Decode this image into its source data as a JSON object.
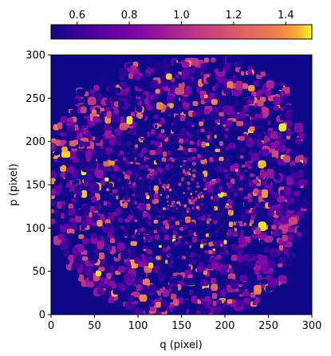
{
  "chart_data": {
    "type": "heatmap",
    "title": "",
    "xlabel": "q (pixel)",
    "ylabel": "p (pixel)",
    "xlim": [
      0,
      300
    ],
    "ylim": [
      0,
      300
    ],
    "x_ticks": [
      0,
      50,
      100,
      150,
      200,
      250,
      300
    ],
    "y_ticks": [
      0,
      50,
      100,
      150,
      200,
      250,
      300
    ],
    "x_tick_labels": [
      "0",
      "50",
      "100",
      "150",
      "200",
      "250",
      "300"
    ],
    "y_tick_labels": [
      "0",
      "50",
      "100",
      "150",
      "200",
      "250",
      "300"
    ],
    "colormap": "plasma",
    "colorbar": {
      "orientation": "horizontal",
      "placement": "top",
      "range": [
        0.5,
        1.5
      ],
      "ticks": [
        0.6,
        0.8,
        1.0,
        1.2,
        1.4
      ],
      "tick_labels": [
        "0.6",
        "0.8",
        "1.0",
        "1.2",
        "1.4"
      ]
    },
    "background_value": 0.5,
    "center": [
      150,
      145
    ],
    "valid_region": "irregular octagon, data absent near corners",
    "grid": false,
    "legend": "none"
  }
}
